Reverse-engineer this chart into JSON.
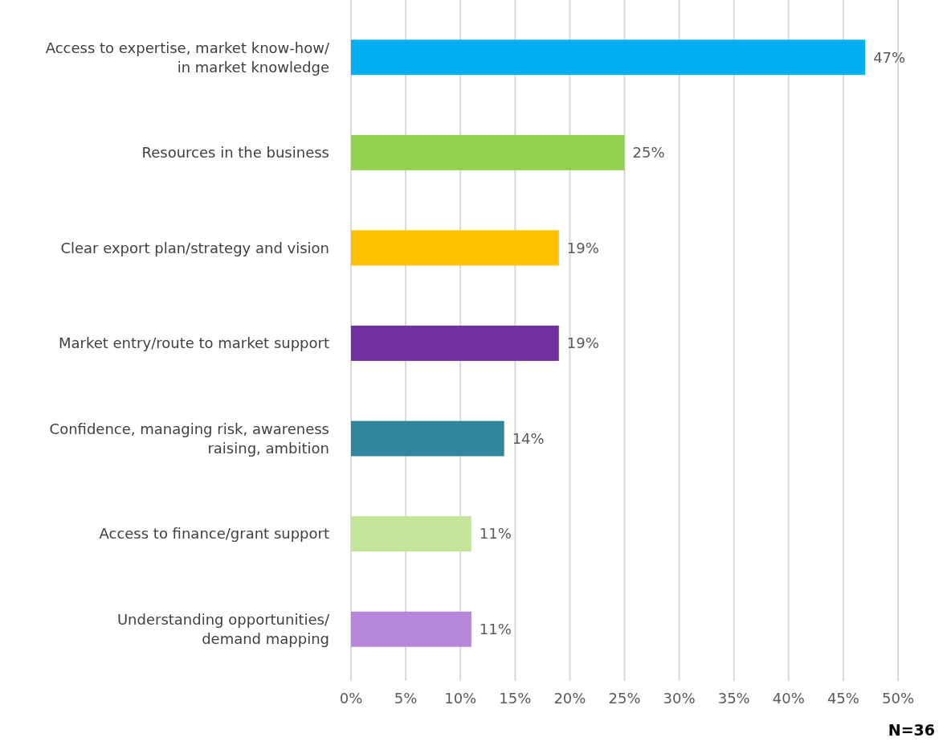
{
  "chart_data": {
    "type": "bar",
    "orientation": "horizontal",
    "categories": [
      "Access to expertise, market know-how/ in market knowledge",
      "Resources in the business",
      "Clear export plan/strategy and vision",
      "Market entry/route to market support",
      "Confidence, managing risk, awareness raising, ambition",
      "Access to finance/grant support",
      "Understanding opportunities/ demand mapping"
    ],
    "values": [
      47,
      25,
      19,
      19,
      14,
      11,
      11
    ],
    "colors": [
      "#00b0f0",
      "#92d050",
      "#ffc000",
      "#7030a0",
      "#31859c",
      "#c2e59a",
      "#b586d9"
    ],
    "xlim": [
      0,
      50
    ],
    "xticks": [
      {
        "value": 0,
        "label": "0%"
      },
      {
        "value": 5,
        "label": "5%"
      },
      {
        "value": 10,
        "label": "10%"
      },
      {
        "value": 15,
        "label": "15%"
      },
      {
        "value": 20,
        "label": "20%"
      },
      {
        "value": 25,
        "label": "25%"
      },
      {
        "value": 30,
        "label": "30%"
      },
      {
        "value": 35,
        "label": "35%"
      },
      {
        "value": 40,
        "label": "40%"
      },
      {
        "value": 45,
        "label": "45%"
      },
      {
        "value": 50,
        "label": "50%"
      }
    ],
    "value_labels": [
      "47%",
      "25%",
      "19%",
      "19%",
      "14%",
      "11%",
      "11%"
    ],
    "grid": "x",
    "annotations": [
      "N=36"
    ]
  }
}
